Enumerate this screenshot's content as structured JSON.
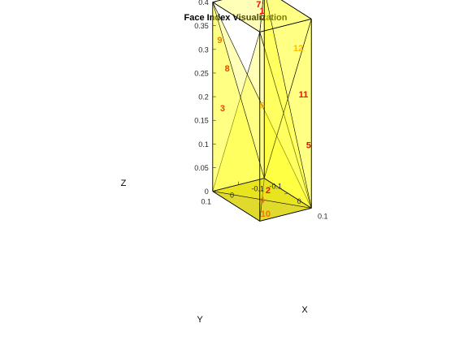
{
  "chart_data": {
    "type": "scatter",
    "title": "Face Index Visualization",
    "xlabel": "X",
    "ylabel": "Y",
    "zlabel": "Z",
    "xlim": [
      -0.1,
      0.1
    ],
    "ylim": [
      -0.1,
      0.1
    ],
    "zlim": [
      0,
      0.4
    ],
    "x_ticks": [
      "-0.1",
      "0",
      "0.1"
    ],
    "y_ticks": [
      "0.1",
      "0",
      "-0.1"
    ],
    "z_ticks": [
      "0",
      "0.05",
      "0.1",
      "0.15",
      "0.2",
      "0.25",
      "0.3",
      "0.35",
      "0.4"
    ],
    "face_color": "#ffff00",
    "face_alpha": 0.6,
    "edge_color": "#000000",
    "vertices": [
      [
        -0.1,
        -0.1,
        0
      ],
      [
        0.1,
        -0.1,
        0
      ],
      [
        0.1,
        0.1,
        0
      ],
      [
        -0.1,
        0.1,
        0
      ],
      [
        -0.1,
        -0.1,
        0.4
      ],
      [
        0.1,
        -0.1,
        0.4
      ],
      [
        0.1,
        0.1,
        0.4
      ],
      [
        -0.1,
        0.1,
        0.4
      ]
    ],
    "faces": [
      [
        4,
        5,
        6
      ],
      [
        0,
        1,
        2
      ],
      [
        3,
        2,
        6
      ],
      [
        0,
        2,
        3
      ],
      [
        1,
        2,
        6
      ],
      [
        3,
        1,
        7
      ],
      [
        0,
        4,
        5
      ],
      [
        1,
        5,
        6
      ],
      [
        0,
        3,
        7
      ],
      [
        0,
        1,
        5
      ],
      [
        0,
        1,
        4
      ],
      [
        4,
        6,
        7
      ]
    ],
    "face_labels": [
      {
        "text": "1",
        "color": "#ee1100",
        "pos": [
          0.0,
          0.0,
          0.4
        ]
      },
      {
        "text": "2",
        "color": "#ee1100",
        "pos": [
          -0.04,
          -0.06,
          0.0
        ]
      },
      {
        "text": "3",
        "color": "#ee4400",
        "pos": [
          -0.08,
          0.08,
          0.18
        ]
      },
      {
        "text": "4",
        "color": "#ee7700",
        "pos": [
          0.0,
          0.0,
          0.0
        ]
      },
      {
        "text": "5",
        "color": "#ee1100",
        "pos": [
          0.11,
          -0.08,
          0.14
        ]
      },
      {
        "text": "6",
        "color": "#ffbb00",
        "pos": [
          0.0,
          0.0,
          0.2
        ]
      },
      {
        "text": "7",
        "color": "#ee1100",
        "pos": [
          -0.08,
          -0.06,
          0.38
        ]
      },
      {
        "text": "8",
        "color": "#ee4400",
        "pos": [
          -0.06,
          0.08,
          0.27
        ]
      },
      {
        "text": "9",
        "color": "#ee7700",
        "pos": [
          -0.07,
          0.1,
          0.33
        ]
      },
      {
        "text": "10",
        "color": "#ee7700",
        "pos": [
          0.07,
          0.05,
          0.0
        ]
      },
      {
        "text": "11",
        "color": "#ee1100",
        "pos": [
          0.11,
          -0.06,
          0.25
        ]
      },
      {
        "text": "12",
        "color": "#ffbb00",
        "pos": [
          0.11,
          -0.04,
          0.35
        ]
      }
    ]
  }
}
